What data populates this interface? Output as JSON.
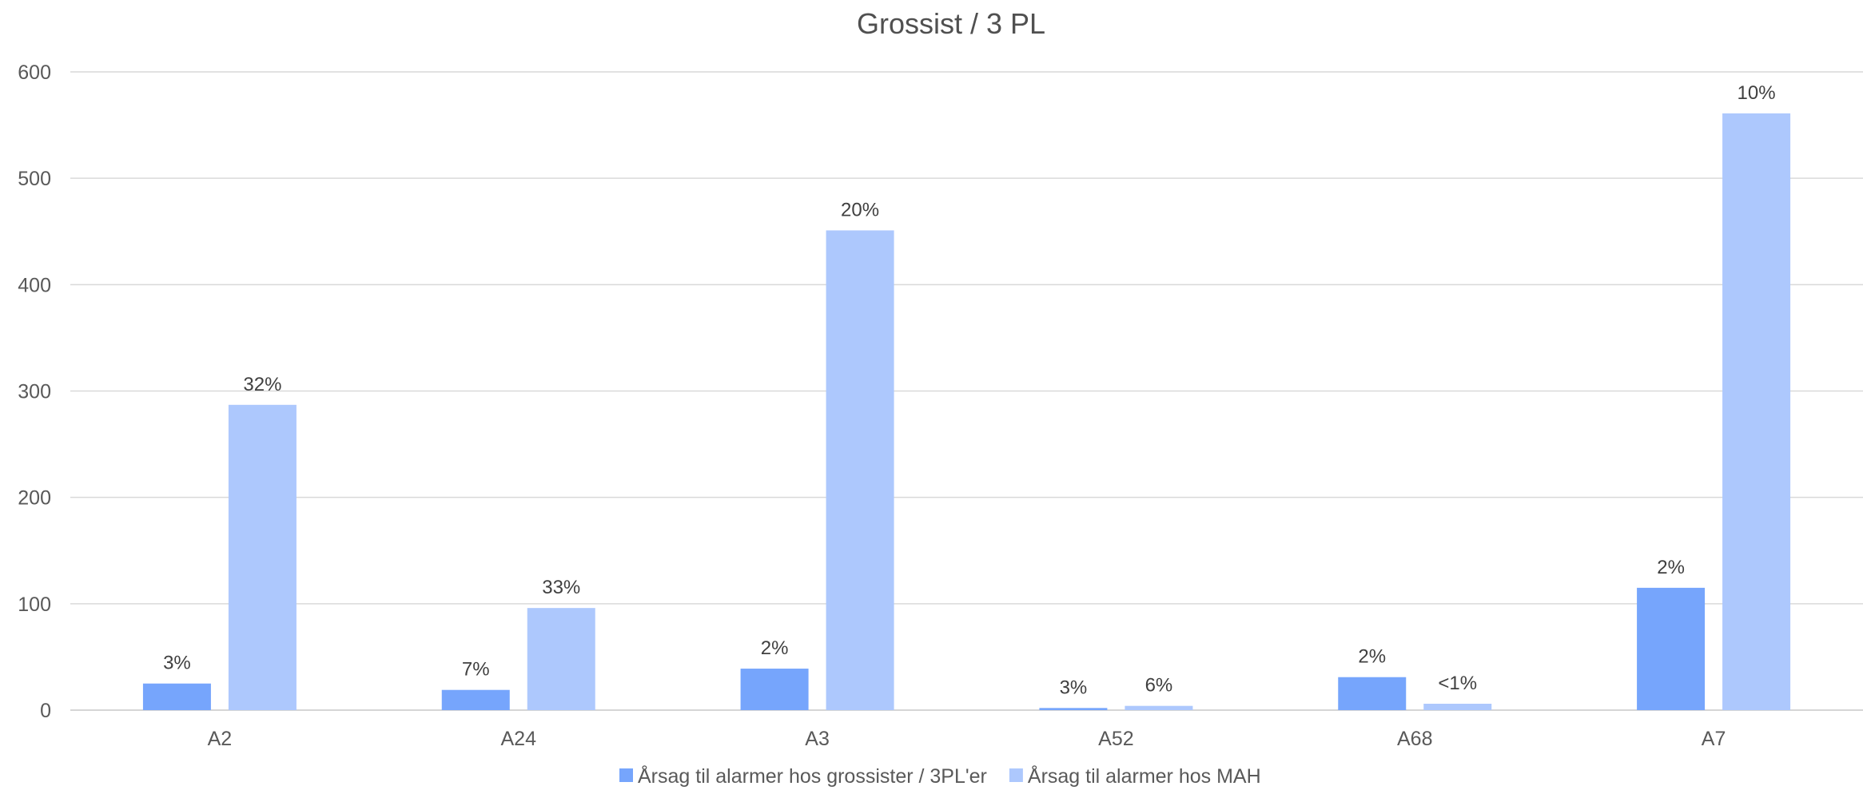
{
  "chart_data": {
    "type": "bar",
    "title": "Grossist / 3 PL",
    "xlabel": "",
    "ylabel": "",
    "ylim": [
      0,
      600
    ],
    "yticks": [
      0,
      100,
      200,
      300,
      400,
      500,
      600
    ],
    "grid": true,
    "legend_position": "bottom",
    "categories": [
      "A2",
      "A24",
      "A3",
      "A52",
      "A68",
      "A7"
    ],
    "series": [
      {
        "name": "Årsag til alarmer hos grossister / 3PL'er",
        "color": "#76A5FC",
        "values": [
          25,
          19,
          39,
          2,
          31,
          115
        ],
        "labels": [
          "3%",
          "7%",
          "2%",
          "3%",
          "2%",
          "2%"
        ]
      },
      {
        "name": "Årsag til alarmer hos MAH",
        "color": "#ADC8FD",
        "values": [
          287,
          96,
          451,
          4,
          6,
          561
        ],
        "labels": [
          "32%",
          "33%",
          "20%",
          "6%",
          "<1%",
          "10%"
        ]
      }
    ]
  }
}
